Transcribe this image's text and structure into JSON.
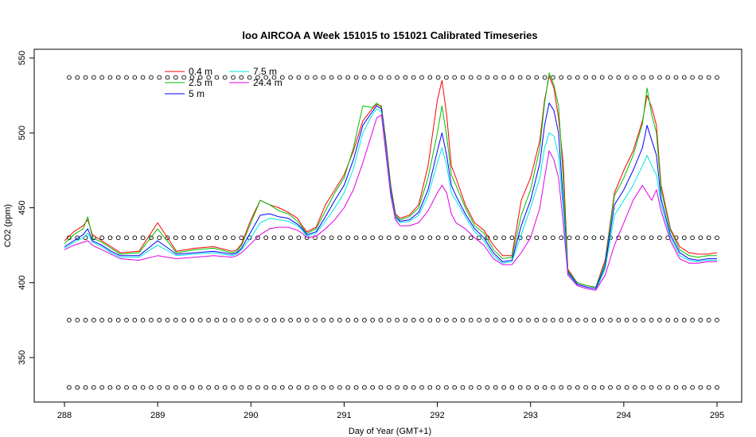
{
  "chart_data": {
    "type": "line",
    "title": "loo AIRCOA A  Week 151015 to 151021  Calibrated Timeseries",
    "xlabel": "Day of Year (GMT+1)",
    "ylabel": "CO2 (ppm)",
    "xlim": [
      288,
      295
    ],
    "ylim": [
      325,
      550
    ],
    "x_ticks": [
      288,
      289,
      290,
      291,
      292,
      293,
      294,
      295
    ],
    "y_ticks": [
      350,
      400,
      450,
      500,
      550
    ],
    "grid": false,
    "legend_position": "top-left",
    "series": [
      {
        "name": "0.4 m",
        "color": "#ff0000",
        "x": [
          288.0,
          288.1,
          288.2,
          288.25,
          288.3,
          288.4,
          288.5,
          288.6,
          288.8,
          289.0,
          289.2,
          289.4,
          289.6,
          289.8,
          289.85,
          289.9,
          290.0,
          290.1,
          290.2,
          290.3,
          290.4,
          290.5,
          290.55,
          290.6,
          290.7,
          290.8,
          290.9,
          291.0,
          291.1,
          291.2,
          291.3,
          291.35,
          291.4,
          291.45,
          291.5,
          291.55,
          291.6,
          291.7,
          291.8,
          291.9,
          292.0,
          292.05,
          292.1,
          292.15,
          292.2,
          292.3,
          292.4,
          292.5,
          292.6,
          292.7,
          292.8,
          292.9,
          293.0,
          293.1,
          293.15,
          293.2,
          293.25,
          293.3,
          293.35,
          293.4,
          293.5,
          293.6,
          293.7,
          293.8,
          293.9,
          294.0,
          294.1,
          294.2,
          294.25,
          294.3,
          294.35,
          294.4,
          294.5,
          294.6,
          294.7,
          294.8,
          294.9,
          295.0
        ],
        "y": [
          428,
          434,
          438,
          442,
          432,
          428,
          424,
          420,
          421,
          440,
          421,
          423,
          424,
          421,
          422,
          426,
          442,
          455,
          452,
          450,
          447,
          443,
          438,
          434,
          437,
          452,
          462,
          472,
          488,
          508,
          516,
          519,
          518,
          494,
          465,
          446,
          443,
          445,
          452,
          478,
          522,
          535,
          512,
          478,
          470,
          452,
          440,
          435,
          425,
          418,
          418,
          455,
          470,
          495,
          522,
          538,
          530,
          510,
          480,
          409,
          400,
          398,
          397,
          415,
          460,
          475,
          488,
          508,
          525,
          517,
          505,
          465,
          436,
          424,
          420,
          419,
          419,
          420
        ]
      },
      {
        "name": "2.5 m",
        "color": "#00c000",
        "x": [
          288.0,
          288.1,
          288.2,
          288.25,
          288.3,
          288.4,
          288.5,
          288.6,
          288.8,
          289.0,
          289.2,
          289.4,
          289.6,
          289.8,
          289.85,
          289.9,
          290.0,
          290.1,
          290.2,
          290.3,
          290.4,
          290.5,
          290.55,
          290.6,
          290.7,
          290.8,
          290.9,
          291.0,
          291.1,
          291.2,
          291.3,
          291.35,
          291.4,
          291.45,
          291.5,
          291.55,
          291.6,
          291.7,
          291.8,
          291.9,
          292.0,
          292.05,
          292.1,
          292.15,
          292.2,
          292.3,
          292.4,
          292.5,
          292.6,
          292.7,
          292.8,
          292.9,
          293.0,
          293.1,
          293.15,
          293.2,
          293.25,
          293.3,
          293.35,
          293.4,
          293.5,
          293.6,
          293.7,
          293.8,
          293.9,
          294.0,
          294.1,
          294.2,
          294.25,
          294.3,
          294.35,
          294.4,
          294.5,
          294.6,
          294.7,
          294.8,
          294.9,
          295.0
        ],
        "y": [
          426,
          432,
          436,
          444,
          430,
          427,
          423,
          419,
          420,
          436,
          420,
          422,
          423,
          420,
          421,
          425,
          440,
          455,
          452,
          448,
          446,
          441,
          437,
          433,
          436,
          448,
          460,
          470,
          490,
          518,
          517,
          520,
          517,
          492,
          464,
          445,
          442,
          444,
          450,
          470,
          500,
          518,
          498,
          472,
          465,
          450,
          438,
          433,
          422,
          416,
          417,
          445,
          462,
          490,
          520,
          540,
          532,
          518,
          470,
          408,
          400,
          398,
          397,
          413,
          458,
          470,
          485,
          506,
          530,
          512,
          500,
          462,
          435,
          422,
          418,
          417,
          418,
          418
        ]
      },
      {
        "name": "5 m",
        "color": "#0000ff",
        "x": [
          288.0,
          288.1,
          288.2,
          288.25,
          288.3,
          288.4,
          288.5,
          288.6,
          288.8,
          289.0,
          289.2,
          289.4,
          289.6,
          289.8,
          289.85,
          289.9,
          290.0,
          290.1,
          290.2,
          290.3,
          290.4,
          290.5,
          290.55,
          290.6,
          290.7,
          290.8,
          290.9,
          291.0,
          291.1,
          291.2,
          291.3,
          291.35,
          291.4,
          291.45,
          291.5,
          291.55,
          291.6,
          291.7,
          291.8,
          291.9,
          292.0,
          292.05,
          292.1,
          292.15,
          292.2,
          292.3,
          292.4,
          292.5,
          292.6,
          292.7,
          292.8,
          292.9,
          293.0,
          293.1,
          293.15,
          293.2,
          293.25,
          293.3,
          293.35,
          293.4,
          293.5,
          293.6,
          293.7,
          293.8,
          293.9,
          294.0,
          294.1,
          294.2,
          294.25,
          294.3,
          294.35,
          294.4,
          294.5,
          294.6,
          294.7,
          294.8,
          294.9,
          295.0
        ],
        "y": [
          424,
          428,
          432,
          436,
          428,
          425,
          421,
          418,
          418,
          428,
          419,
          420,
          421,
          419,
          420,
          423,
          434,
          445,
          446,
          444,
          443,
          439,
          436,
          432,
          434,
          444,
          455,
          465,
          482,
          505,
          514,
          518,
          516,
          490,
          462,
          444,
          441,
          442,
          447,
          462,
          488,
          500,
          485,
          465,
          458,
          446,
          436,
          430,
          420,
          414,
          415,
          438,
          455,
          480,
          505,
          520,
          515,
          500,
          455,
          407,
          399,
          397,
          396,
          411,
          452,
          462,
          475,
          490,
          505,
          495,
          485,
          456,
          432,
          420,
          416,
          415,
          416,
          416
        ]
      },
      {
        "name": "7.5 m",
        "color": "#00e5e5",
        "x": [
          288.0,
          288.1,
          288.2,
          288.25,
          288.3,
          288.4,
          288.5,
          288.6,
          288.8,
          289.0,
          289.2,
          289.4,
          289.6,
          289.8,
          289.85,
          289.9,
          290.0,
          290.1,
          290.2,
          290.3,
          290.4,
          290.5,
          290.55,
          290.6,
          290.7,
          290.8,
          290.9,
          291.0,
          291.1,
          291.2,
          291.3,
          291.35,
          291.4,
          291.45,
          291.5,
          291.55,
          291.6,
          291.7,
          291.8,
          291.9,
          292.0,
          292.05,
          292.1,
          292.15,
          292.2,
          292.3,
          292.4,
          292.5,
          292.6,
          292.7,
          292.8,
          292.9,
          293.0,
          293.1,
          293.15,
          293.2,
          293.25,
          293.3,
          293.35,
          293.4,
          293.5,
          293.6,
          293.7,
          293.8,
          293.9,
          294.0,
          294.1,
          294.2,
          294.25,
          294.3,
          294.35,
          294.4,
          294.5,
          294.6,
          294.7,
          294.8,
          294.9,
          295.0
        ],
        "y": [
          423,
          427,
          430,
          433,
          427,
          424,
          420,
          417,
          417,
          425,
          418,
          419,
          420,
          418,
          419,
          422,
          430,
          440,
          443,
          442,
          441,
          438,
          435,
          431,
          433,
          441,
          450,
          460,
          476,
          500,
          512,
          516,
          514,
          488,
          460,
          443,
          440,
          441,
          445,
          458,
          480,
          490,
          478,
          460,
          455,
          444,
          434,
          428,
          418,
          413,
          414,
          432,
          450,
          470,
          490,
          500,
          498,
          485,
          450,
          406,
          398,
          396,
          395,
          409,
          445,
          455,
          465,
          478,
          485,
          478,
          472,
          452,
          430,
          418,
          415,
          414,
          415,
          415
        ]
      },
      {
        "name": "24.4 m",
        "color": "#e000e0",
        "x": [
          288.0,
          288.1,
          288.2,
          288.25,
          288.3,
          288.4,
          288.5,
          288.6,
          288.8,
          289.0,
          289.2,
          289.4,
          289.6,
          289.8,
          289.85,
          289.9,
          290.0,
          290.1,
          290.2,
          290.3,
          290.4,
          290.5,
          290.55,
          290.6,
          290.7,
          290.8,
          290.9,
          291.0,
          291.1,
          291.2,
          291.3,
          291.35,
          291.4,
          291.45,
          291.5,
          291.55,
          291.6,
          291.7,
          291.8,
          291.9,
          292.0,
          292.05,
          292.1,
          292.15,
          292.2,
          292.3,
          292.4,
          292.5,
          292.6,
          292.7,
          292.8,
          292.9,
          293.0,
          293.1,
          293.15,
          293.2,
          293.25,
          293.3,
          293.35,
          293.4,
          293.5,
          293.6,
          293.7,
          293.8,
          293.9,
          294.0,
          294.1,
          294.2,
          294.25,
          294.3,
          294.35,
          294.4,
          294.5,
          294.6,
          294.7,
          294.8,
          294.9,
          295.0
        ],
        "y": [
          422,
          425,
          427,
          428,
          425,
          422,
          419,
          416,
          415,
          418,
          416,
          417,
          418,
          417,
          418,
          420,
          426,
          432,
          436,
          437,
          437,
          435,
          433,
          430,
          431,
          436,
          442,
          450,
          462,
          480,
          500,
          510,
          512,
          485,
          458,
          442,
          438,
          438,
          440,
          448,
          460,
          465,
          460,
          446,
          440,
          436,
          430,
          425,
          416,
          412,
          412,
          420,
          430,
          450,
          470,
          488,
          482,
          470,
          440,
          405,
          398,
          396,
          395,
          405,
          425,
          440,
          455,
          465,
          460,
          455,
          462,
          448,
          428,
          416,
          413,
          413,
          414,
          414
        ]
      }
    ],
    "marker_rows": {
      "marker": "circle",
      "color": "#000000",
      "levels": [
        537,
        430,
        375,
        330
      ],
      "x_start": 288.05,
      "x_end": 295.0,
      "count": 80
    }
  }
}
